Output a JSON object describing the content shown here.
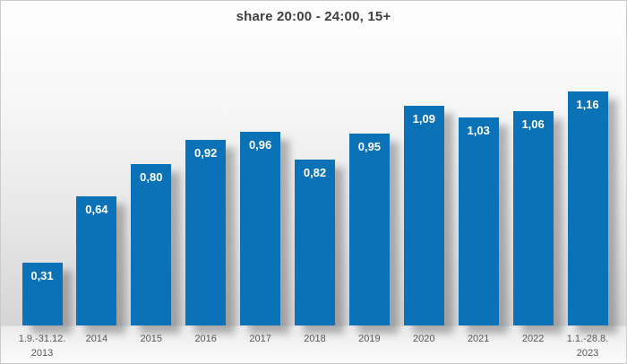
{
  "chart_data": {
    "type": "bar",
    "title": "share 20:00 - 24:00, 15+",
    "categories": [
      "1.9.-31.12.\n2013",
      "2014",
      "2015",
      "2016",
      "2017",
      "2018",
      "2019",
      "2020",
      "2021",
      "2022",
      "1.1.-28.8.\n2023"
    ],
    "values": [
      0.31,
      0.64,
      0.8,
      0.92,
      0.96,
      0.82,
      0.95,
      1.09,
      1.03,
      1.06,
      1.16
    ],
    "value_labels": [
      "0,31",
      "0,64",
      "0,80",
      "0,92",
      "0,96",
      "0,82",
      "0,95",
      "1,09",
      "1,03",
      "1,06",
      "1,16"
    ],
    "xlabel": "",
    "ylabel": "",
    "ylim": [
      0,
      1.3
    ],
    "grid": false,
    "legend": false,
    "colors": {
      "bar": "#0c72b8",
      "value_label_text": "#ffffff",
      "axis_label_text": "#595959",
      "title_text": "#404040"
    }
  }
}
